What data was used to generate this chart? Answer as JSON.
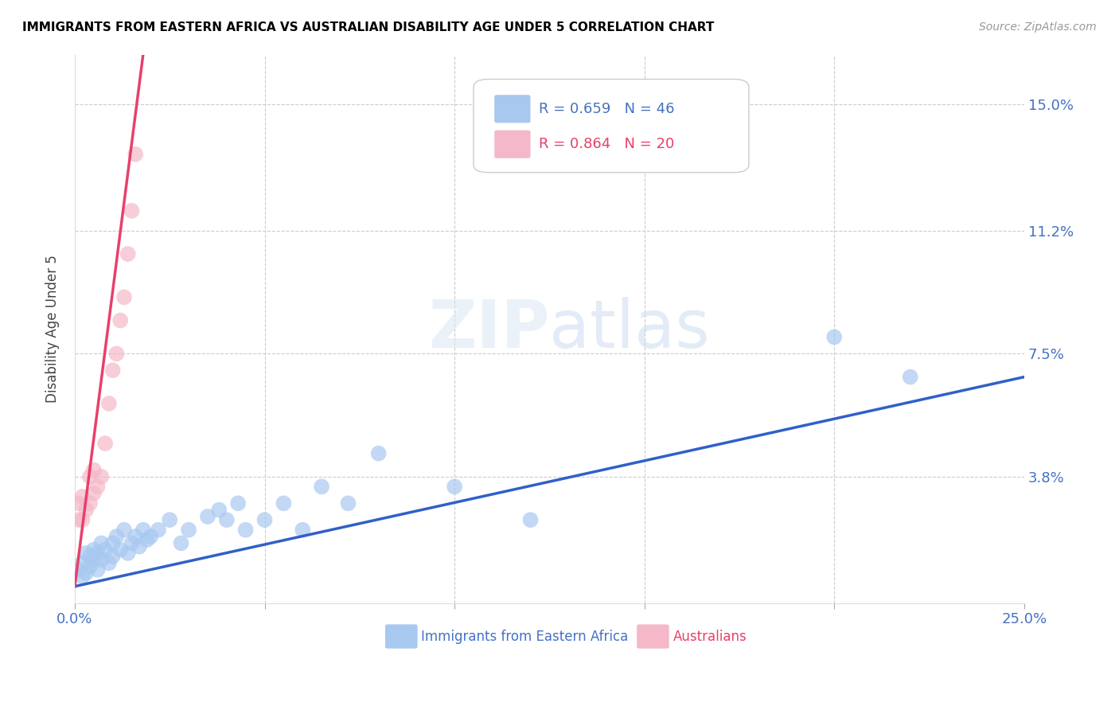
{
  "title": "IMMIGRANTS FROM EASTERN AFRICA VS AUSTRALIAN DISABILITY AGE UNDER 5 CORRELATION CHART",
  "source": "Source: ZipAtlas.com",
  "ylabel": "Disability Age Under 5",
  "ytick_labels": [
    "",
    "3.8%",
    "7.5%",
    "11.2%",
    "15.0%"
  ],
  "ytick_values": [
    0,
    0.038,
    0.075,
    0.112,
    0.15
  ],
  "xlim": [
    0.0,
    0.25
  ],
  "ylim": [
    0.0,
    0.165
  ],
  "blue_R": "0.659",
  "blue_N": "46",
  "pink_R": "0.864",
  "pink_N": "20",
  "blue_color": "#a8c8f0",
  "pink_color": "#f5b8c8",
  "blue_line_color": "#3060c8",
  "pink_line_color": "#e8406a",
  "legend_label_blue": "Immigrants from Eastern Africa",
  "legend_label_pink": "Australians",
  "blue_scatter_x": [
    0.001,
    0.002,
    0.002,
    0.003,
    0.003,
    0.004,
    0.004,
    0.005,
    0.005,
    0.006,
    0.006,
    0.007,
    0.007,
    0.008,
    0.009,
    0.01,
    0.01,
    0.011,
    0.012,
    0.013,
    0.014,
    0.015,
    0.016,
    0.017,
    0.018,
    0.019,
    0.02,
    0.022,
    0.025,
    0.028,
    0.03,
    0.035,
    0.038,
    0.04,
    0.043,
    0.045,
    0.05,
    0.055,
    0.06,
    0.065,
    0.072,
    0.08,
    0.1,
    0.12,
    0.2,
    0.22
  ],
  "blue_scatter_y": [
    0.01,
    0.008,
    0.012,
    0.009,
    0.015,
    0.011,
    0.014,
    0.013,
    0.016,
    0.01,
    0.015,
    0.013,
    0.018,
    0.016,
    0.012,
    0.014,
    0.018,
    0.02,
    0.016,
    0.022,
    0.015,
    0.018,
    0.02,
    0.017,
    0.022,
    0.019,
    0.02,
    0.022,
    0.025,
    0.018,
    0.022,
    0.026,
    0.028,
    0.025,
    0.03,
    0.022,
    0.025,
    0.03,
    0.022,
    0.035,
    0.03,
    0.045,
    0.035,
    0.025,
    0.08,
    0.068
  ],
  "pink_scatter_x": [
    0.001,
    0.001,
    0.002,
    0.002,
    0.003,
    0.004,
    0.004,
    0.005,
    0.005,
    0.006,
    0.007,
    0.008,
    0.009,
    0.01,
    0.011,
    0.012,
    0.013,
    0.014,
    0.015,
    0.016
  ],
  "pink_scatter_y": [
    0.025,
    0.03,
    0.025,
    0.032,
    0.028,
    0.03,
    0.038,
    0.033,
    0.04,
    0.035,
    0.038,
    0.048,
    0.06,
    0.07,
    0.075,
    0.085,
    0.092,
    0.105,
    0.118,
    0.135
  ],
  "blue_trend_x": [
    0.0,
    0.25
  ],
  "blue_trend_y": [
    0.005,
    0.068
  ],
  "pink_trend_x": [
    0.0,
    0.018
  ],
  "pink_trend_y": [
    0.005,
    0.165
  ]
}
